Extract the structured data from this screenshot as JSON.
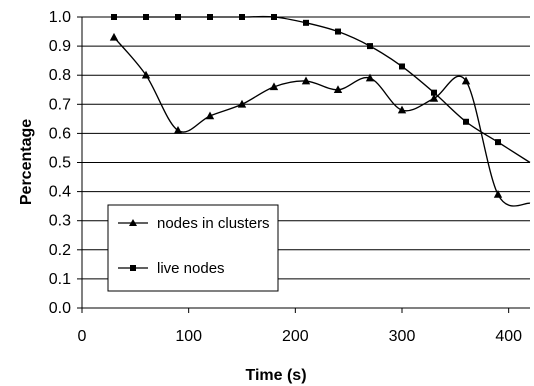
{
  "chart_data": {
    "type": "line",
    "title": "",
    "xlabel": "Time (s)",
    "ylabel": "Percentage",
    "xlim": [
      0,
      420
    ],
    "ylim": [
      0.0,
      1.0
    ],
    "x_ticks": [
      0,
      100,
      200,
      300,
      400
    ],
    "x_tick_labels": [
      "0",
      "100",
      "200",
      "300",
      "400"
    ],
    "y_ticks": [
      0.0,
      0.1,
      0.2,
      0.3,
      0.4,
      0.5,
      0.6,
      0.7,
      0.8,
      0.9,
      1.0
    ],
    "y_tick_labels": [
      "0.0",
      "0.1",
      "0.2",
      "0.3",
      "0.4",
      "0.5",
      "0.6",
      "0.7",
      "0.8",
      "0.9",
      "1.0"
    ],
    "grid": true,
    "smooth": true,
    "legend_position": "bottom-left",
    "series": [
      {
        "name": "nodes in clusters",
        "marker": "triangle",
        "color": "#000000",
        "x": [
          30,
          60,
          90,
          120,
          150,
          180,
          210,
          240,
          270,
          300,
          330,
          360,
          390,
          420
        ],
        "y": [
          0.93,
          0.8,
          0.61,
          0.66,
          0.7,
          0.76,
          0.78,
          0.75,
          0.79,
          0.68,
          0.72,
          0.78,
          0.39,
          0.36
        ],
        "marker_count": 13
      },
      {
        "name": "live nodes",
        "marker": "square",
        "color": "#000000",
        "x": [
          30,
          60,
          90,
          120,
          150,
          180,
          210,
          240,
          270,
          300,
          330,
          360,
          390,
          420
        ],
        "y": [
          1.0,
          1.0,
          1.0,
          1.0,
          1.0,
          1.0,
          0.98,
          0.95,
          0.9,
          0.83,
          0.74,
          0.64,
          0.57,
          0.5
        ],
        "marker_count": 13
      }
    ]
  }
}
